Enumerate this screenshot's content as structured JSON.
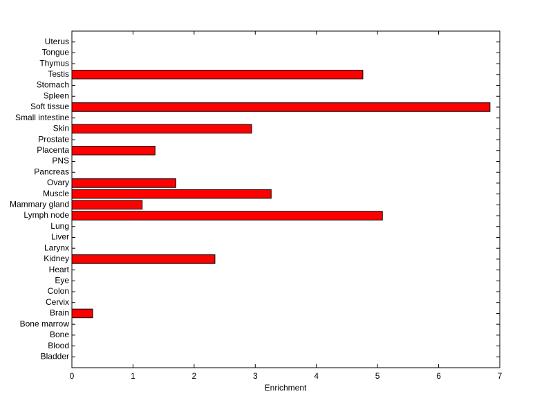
{
  "chart_data": {
    "type": "barh",
    "x_label": "Enrichment",
    "categories": [
      "Bladder",
      "Blood",
      "Bone",
      "Bone marrow",
      "Brain",
      "Cervix",
      "Colon",
      "Eye",
      "Heart",
      "Kidney",
      "Larynx",
      "Liver",
      "Lung",
      "Lymph node",
      "Mammary gland",
      "Muscle",
      "Ovary",
      "Pancreas",
      "PNS",
      "Placenta",
      "Prostate",
      "Skin",
      "Small intestine",
      "Soft tissue",
      "Spleen",
      "Stomach",
      "Testis",
      "Thymus",
      "Tongue",
      "Uterus"
    ],
    "values": [
      0,
      0,
      0,
      0,
      0.34,
      0,
      0,
      0,
      0,
      2.34,
      0,
      0,
      0,
      5.08,
      1.15,
      3.26,
      1.7,
      0,
      0,
      1.36,
      0,
      2.94,
      0,
      6.84,
      0,
      0,
      4.76,
      0,
      0,
      0
    ],
    "color": "#ff0000",
    "xlim": [
      0,
      7
    ],
    "xticks": [
      0,
      1,
      2,
      3,
      4,
      5,
      6,
      7
    ]
  }
}
